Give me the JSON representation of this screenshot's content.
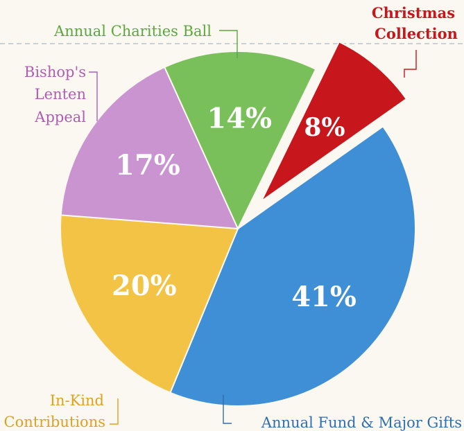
{
  "chart_data": {
    "type": "pie",
    "title": "",
    "slices": [
      {
        "label": "Christmas Collection",
        "value": 8,
        "value_label": "8%",
        "color": "#c8161d",
        "exploded": true
      },
      {
        "label": "Annual Fund & Major Gifts",
        "value": 41,
        "value_label": "41%",
        "color": "#3f8fd6"
      },
      {
        "label": "In-Kind Contributions",
        "value": 20,
        "value_label": "20%",
        "color": "#f2c344"
      },
      {
        "label": "Bishop's Lenten Appeal",
        "value": 17,
        "value_label": "17%",
        "color": "#c994cf"
      },
      {
        "label": "Annual Charities Ball",
        "value": 14,
        "value_label": "14%",
        "color": "#79c05a"
      }
    ],
    "labels": {
      "christmas_line1": "Christmas",
      "christmas_line2": "Collection",
      "annual_fund": "Annual Fund & Major Gifts",
      "in_kind_line1": "In-Kind",
      "in_kind_line2": "Contributions",
      "bishops_line1": "Bishop's",
      "bishops_line2": "Lenten",
      "bishops_line3": "Appeal",
      "charities_ball": "Annual Charities Ball"
    },
    "label_colors": {
      "christmas": "#c8161d",
      "annual_fund": "#2f6fb0",
      "in_kind": "#e0a020",
      "bishops": "#b05cb3",
      "charities_ball": "#5aa83c"
    }
  }
}
